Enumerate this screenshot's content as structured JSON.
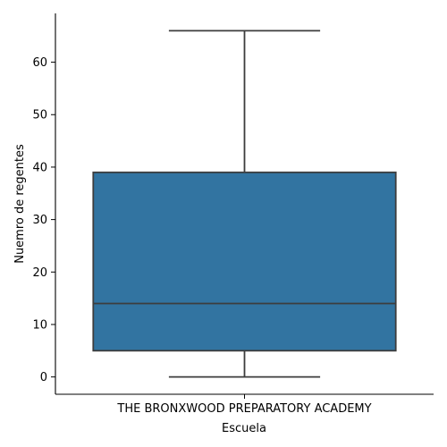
{
  "chart_data": {
    "type": "box",
    "xlabel": "Escuela",
    "ylabel": "Nuemro de regentes",
    "categories": [
      "THE BRONXWOOD PREPARATORY ACADEMY"
    ],
    "boxes": [
      {
        "category": "THE BRONXWOOD PREPARATORY ACADEMY",
        "min": 0,
        "q1": 5,
        "median": 14,
        "q3": 39,
        "max": 66
      }
    ],
    "ylim": [
      -3.3,
      69.3
    ],
    "yticks": [
      0,
      10,
      20,
      30,
      40,
      50,
      60
    ],
    "grid": false,
    "colors": {
      "box_fill": "#3274a1",
      "box_edge": "#3d3d3d",
      "axis": "#000000"
    }
  }
}
